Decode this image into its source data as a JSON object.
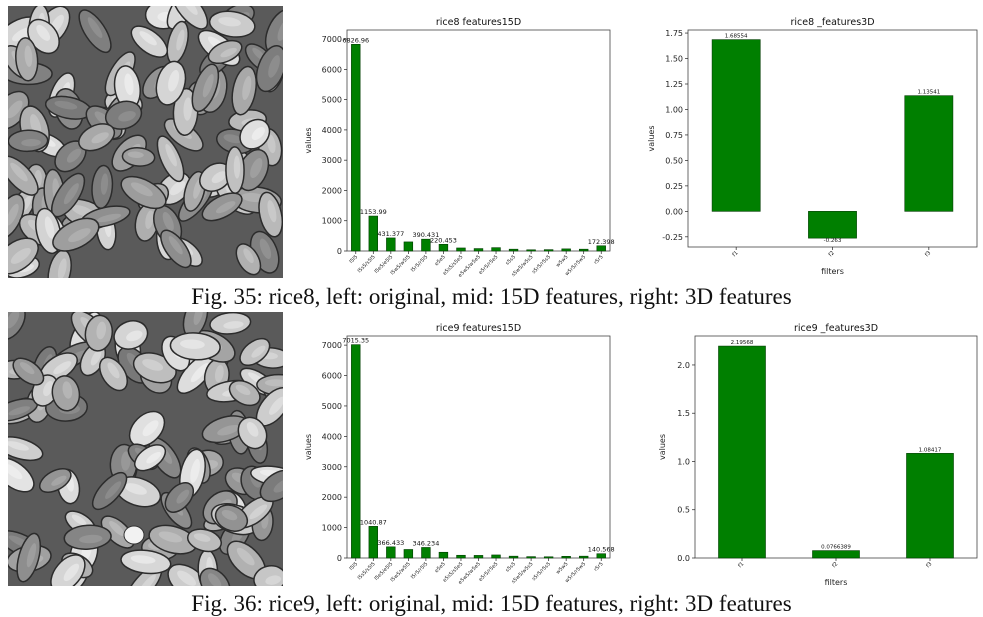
{
  "figures": [
    {
      "caption": "Fig. 35: rice8, left: original, mid: 15D features, right: 3D features",
      "image_alt": "rice8 original grayscale rice grains"
    },
    {
      "caption": "Fig. 36: rice9, left: original, mid: 15D features, right: 3D features",
      "image_alt": "rice9 original grayscale rice grains"
    }
  ],
  "colors": {
    "bar": "#007f00",
    "edge": "#003d00",
    "axis": "#222222",
    "frame": "#444444"
  },
  "chart_data": [
    {
      "type": "bar",
      "title": "rice8 features15D",
      "ylabel": "values",
      "xlabel": "",
      "categories": [
        "l5l5",
        "l5s5/s5l5",
        "l5e5/e5l5",
        "l5w5/w5l5",
        "l5r5/r5l5",
        "e5e5",
        "e5s5/s5e5",
        "e5w5/w5e5",
        "e5r5/r5e5",
        "s5s5",
        "s5w5/w5s5",
        "s5r5/r5s5",
        "w5w5",
        "w5r5/r5w5",
        "r5r5"
      ],
      "values": [
        6826.96,
        1153.99,
        431.377,
        300,
        390.431,
        220.453,
        100,
        80,
        110.5,
        60,
        40,
        45,
        70,
        60,
        172.398
      ],
      "data_labels": [
        "6826.96",
        "1153.99",
        "431.377",
        "",
        "390.431",
        "220.453",
        "",
        "",
        "",
        "",
        "",
        "",
        "",
        "",
        "172.398"
      ],
      "ylim": [
        0,
        7300
      ],
      "yticks": [
        0,
        1000,
        2000,
        3000,
        4000,
        5000,
        6000,
        7000
      ]
    },
    {
      "type": "bar",
      "title": "rice8 _features3D",
      "ylabel": "values",
      "xlabel": "filters",
      "categories": [
        "f1",
        "f2",
        "f3"
      ],
      "values": [
        1.68554,
        -0.263,
        1.13541
      ],
      "data_labels": [
        "1.68554",
        "-0.263",
        "1.13541"
      ],
      "ylim": [
        -0.35,
        1.78
      ],
      "yticks": [
        -0.25,
        0.0,
        0.25,
        0.5,
        0.75,
        1.0,
        1.25,
        1.5,
        1.75
      ],
      "ytick_labels": [
        "-0.25",
        "0.00",
        "0.25",
        "0.50",
        "0.75",
        "1.00",
        "1.25",
        "1.50",
        "1.75"
      ]
    },
    {
      "type": "bar",
      "title": "rice9 features15D",
      "ylabel": "values",
      "xlabel": "",
      "categories": [
        "l5l5",
        "l5s5/s5l5",
        "l5e5/e5l5",
        "l5w5/w5l5",
        "l5r5/r5l5",
        "e5e5",
        "e5s5/s5e5",
        "e5w5/w5e5",
        "e5r5/r5e5",
        "s5s5",
        "s5w5/w5s5",
        "s5r5/r5s5",
        "w5w5",
        "w5r5/r5w5",
        "r5r5"
      ],
      "values": [
        7015.35,
        1040.87,
        366.433,
        280,
        346.234,
        189,
        90,
        85,
        100,
        60,
        45,
        40,
        55,
        60,
        140.568
      ],
      "data_labels": [
        "7015.35",
        "1040.87",
        "366.433",
        "",
        "346.234",
        "",
        "",
        "",
        "",
        "",
        "",
        "",
        "",
        "",
        "140.568"
      ],
      "ylim": [
        0,
        7300
      ],
      "yticks": [
        0,
        1000,
        2000,
        3000,
        4000,
        5000,
        6000,
        7000
      ]
    },
    {
      "type": "bar",
      "title": "rice9 _features3D",
      "ylabel": "values",
      "xlabel": "filters",
      "categories": [
        "f1",
        "f2",
        "f3"
      ],
      "values": [
        2.19568,
        0.0766389,
        1.08417
      ],
      "data_labels": [
        "2.19568",
        "0.0766389",
        "1.08417"
      ],
      "ylim": [
        0,
        2.3
      ],
      "yticks": [
        0.0,
        0.5,
        1.0,
        1.5,
        2.0
      ],
      "ytick_labels": [
        "0.0",
        "0.5",
        "1.0",
        "1.5",
        "2.0"
      ]
    }
  ]
}
